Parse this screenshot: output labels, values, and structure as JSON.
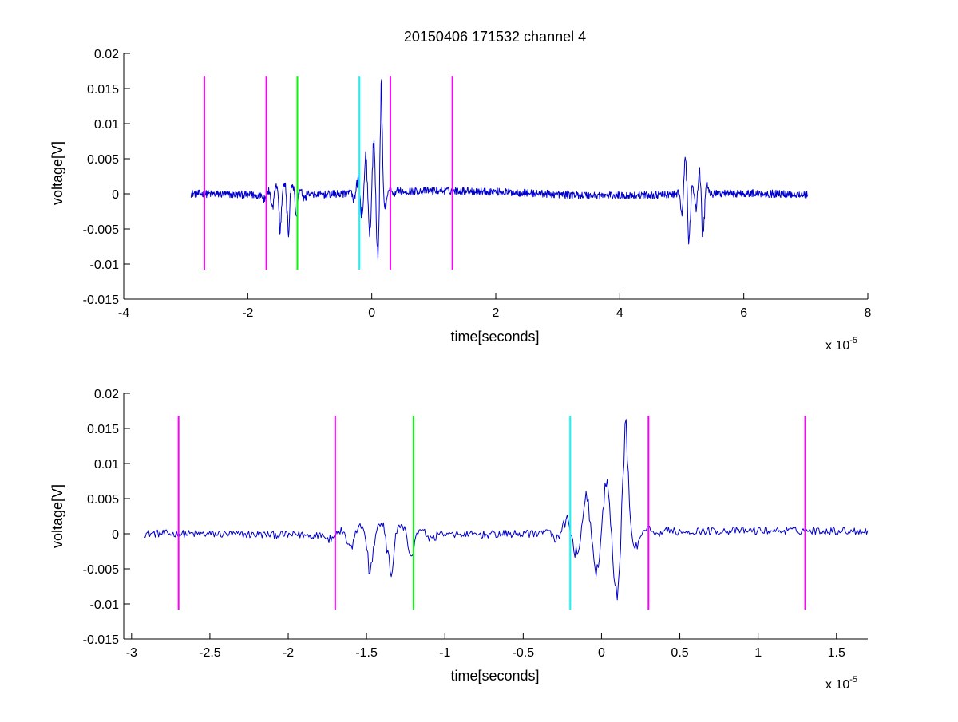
{
  "figure": {
    "background": "#ffffff"
  },
  "chart_data": [
    {
      "type": "line",
      "title": "20150406 171532 channel 4",
      "xlabel": "time[seconds]",
      "ylabel": "voltage[V]",
      "x_multiplier_label": "x 10",
      "x_multiplier_exponent": "-5",
      "xlim": [
        -4,
        8
      ],
      "ylim": [
        -0.015,
        0.02
      ],
      "xticks": [
        "-4",
        "-2",
        "0",
        "2",
        "4",
        "6",
        "8"
      ],
      "yticks": [
        "-0.015",
        "-0.01",
        "-0.005",
        "0",
        "0.005",
        "0.01",
        "0.015",
        "0.02"
      ],
      "grid": false,
      "series": [
        {
          "color": "#0000cc",
          "style": "noisy-signal",
          "x_range": [
            -2.92,
            7.03
          ],
          "noise_amplitude": 0.0005,
          "bursts": [
            {
              "center": -1.4,
              "width": 0.35,
              "peak_max": 0.0025,
              "peak_min": -0.0068
            },
            {
              "center": 0.0,
              "width": 0.3,
              "peak_max": 0.0075,
              "peak_min": -0.0075
            },
            {
              "center": 0.13,
              "width": 0.1,
              "peak_max": 0.0154,
              "peak_min": -0.0064
            },
            {
              "center": 5.08,
              "width": 0.12,
              "peak_max": 0.0065,
              "peak_min": -0.0098
            },
            {
              "center": 5.32,
              "width": 0.12,
              "peak_max": 0.0048,
              "peak_min": -0.0089
            }
          ]
        }
      ],
      "markers": [
        {
          "x": -2.7,
          "y_range": [
            -0.0108,
            0.0168
          ],
          "color": "#ff00ff"
        },
        {
          "x": -1.7,
          "y_range": [
            -0.0108,
            0.0168
          ],
          "color": "#ff00ff"
        },
        {
          "x": -1.2,
          "y_range": [
            -0.0108,
            0.0168
          ],
          "color": "#00ff00"
        },
        {
          "x": -0.2,
          "y_range": [
            -0.0108,
            0.0168
          ],
          "color": "#00ffff"
        },
        {
          "x": 0.3,
          "y_range": [
            -0.0108,
            0.0168
          ],
          "color": "#ff00ff"
        },
        {
          "x": 1.3,
          "y_range": [
            -0.0108,
            0.0168
          ],
          "color": "#ff00ff"
        }
      ]
    },
    {
      "type": "line",
      "title": "",
      "xlabel": "time[seconds]",
      "ylabel": "voltage[V]",
      "x_multiplier_label": "x 10",
      "x_multiplier_exponent": "-5",
      "xlim": [
        -3.05,
        1.7
      ],
      "ylim": [
        -0.015,
        0.02
      ],
      "xticks": [
        "-3",
        "-2.5",
        "-2",
        "-1.5",
        "-1",
        "-0.5",
        "0",
        "0.5",
        "1",
        "1.5"
      ],
      "yticks": [
        "-0.015",
        "-0.01",
        "-0.005",
        "0",
        "0.005",
        "0.01",
        "0.015",
        "0.02"
      ],
      "grid": false,
      "series": [
        {
          "color": "#0000cc",
          "style": "noisy-signal",
          "x_range": [
            -2.92,
            1.7
          ],
          "noise_amplitude": 0.0005,
          "bursts": [
            {
              "center": -1.4,
              "width": 0.35,
              "peak_max": 0.0025,
              "peak_min": -0.0068
            },
            {
              "center": 0.0,
              "width": 0.3,
              "peak_max": 0.0075,
              "peak_min": -0.0075
            },
            {
              "center": 0.13,
              "width": 0.1,
              "peak_max": 0.0154,
              "peak_min": -0.0064
            }
          ]
        }
      ],
      "markers": [
        {
          "x": -2.7,
          "y_range": [
            -0.0108,
            0.0168
          ],
          "color": "#ff00ff"
        },
        {
          "x": -1.7,
          "y_range": [
            -0.0108,
            0.0168
          ],
          "color": "#ff00ff"
        },
        {
          "x": -1.2,
          "y_range": [
            -0.0108,
            0.0168
          ],
          "color": "#00ff00"
        },
        {
          "x": -0.2,
          "y_range": [
            -0.0108,
            0.0168
          ],
          "color": "#00ffff"
        },
        {
          "x": 0.3,
          "y_range": [
            -0.0108,
            0.0168
          ],
          "color": "#ff00ff"
        },
        {
          "x": 1.3,
          "y_range": [
            -0.0108,
            0.0168
          ],
          "color": "#ff00ff"
        }
      ]
    }
  ]
}
